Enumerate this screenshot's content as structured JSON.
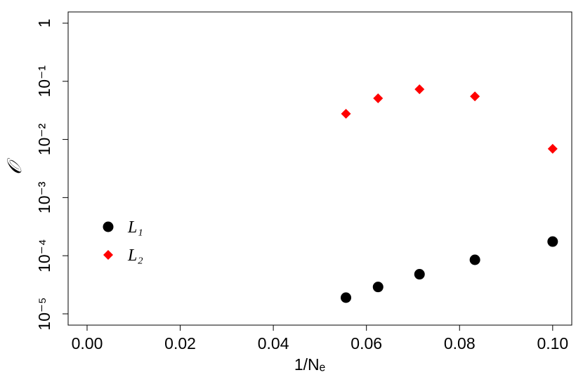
{
  "chart_data": {
    "type": "scatter",
    "xlabel": "1/Nₑ",
    "ylabel": "𝒪",
    "xlim": [
      -0.00407,
      0.1041
    ],
    "ylim": [
      6.4e-06,
      1.56
    ],
    "yscale": "log",
    "xticks": [
      {
        "value": 0,
        "label": "0.00"
      },
      0.02,
      0.04,
      0.06,
      0.08,
      {
        "value": 0.1,
        "label": "0.10"
      }
    ],
    "yticks": [
      1,
      {
        "value": 0.1,
        "label": "10⁻¹"
      },
      {
        "value": 0.01,
        "label": "10⁻²"
      },
      {
        "value": 0.001,
        "label": "10⁻³"
      },
      {
        "value": 0.0001,
        "label": "10⁻⁴"
      },
      {
        "value": 1e-05,
        "label": "10⁻⁵"
      }
    ],
    "legend": "left",
    "series": [
      {
        "name": "L₁",
        "color": "#000000",
        "marker": "circle",
        "x": [
          0.0556,
          0.0625,
          0.0714,
          0.0833,
          0.1
        ],
        "values": [
          1.9e-05,
          2.9e-05,
          4.8e-05,
          8.5e-05,
          0.000175
        ]
      },
      {
        "name": "L₂",
        "color": "#ff0000",
        "marker": "diamond",
        "x": [
          0.0556,
          0.0625,
          0.0714,
          0.0833,
          0.1
        ],
        "values": [
          0.0277,
          0.051,
          0.073,
          0.055,
          0.0069
        ]
      }
    ]
  }
}
